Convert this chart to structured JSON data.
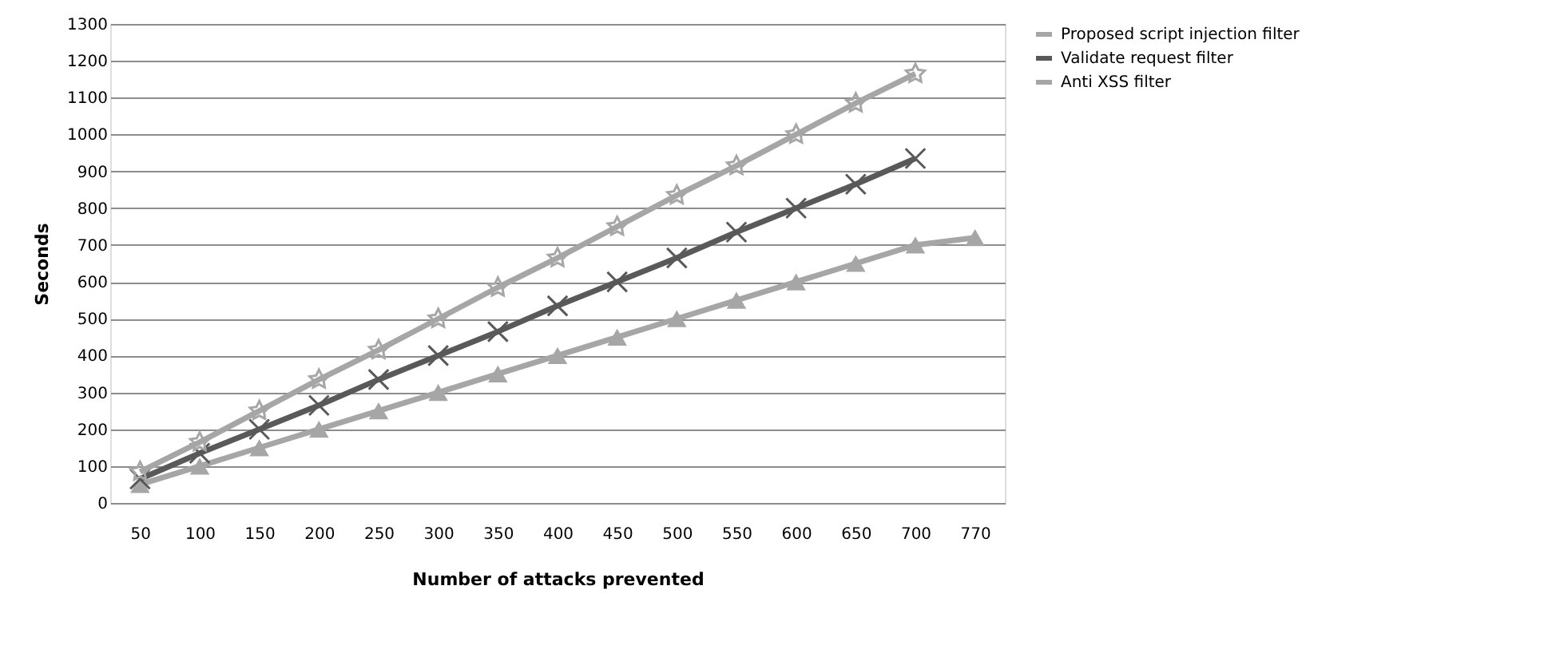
{
  "chart_data": {
    "type": "line",
    "xlabel": "Number of attacks prevented",
    "ylabel": "Seconds",
    "categories": [
      "50",
      "100",
      "150",
      "200",
      "250",
      "300",
      "350",
      "400",
      "450",
      "500",
      "550",
      "600",
      "650",
      "700",
      "770"
    ],
    "series": [
      {
        "name": "Proposed script injection filter",
        "color": "#a6a6a6",
        "marker": "triangle",
        "values": [
          50,
          100,
          150,
          200,
          250,
          300,
          350,
          400,
          450,
          500,
          550,
          600,
          650,
          700,
          720
        ]
      },
      {
        "name": "Validate request filter",
        "color": "#595959",
        "marker": "cross",
        "values": [
          65,
          135,
          200,
          265,
          335,
          400,
          465,
          535,
          600,
          665,
          735,
          800,
          865,
          935,
          null
        ]
      },
      {
        "name": "Anti XSS filter",
        "color": "#a6a6a6",
        "marker": "star",
        "values": [
          85,
          165,
          250,
          335,
          415,
          500,
          585,
          665,
          750,
          835,
          915,
          1000,
          1085,
          1165,
          null
        ]
      }
    ],
    "ylim": [
      0,
      1300
    ],
    "yticks": [
      0,
      100,
      200,
      300,
      400,
      500,
      600,
      700,
      800,
      900,
      1000,
      1100,
      1200,
      1300
    ],
    "grid": "y",
    "legend": "right",
    "line_style": "solid"
  }
}
